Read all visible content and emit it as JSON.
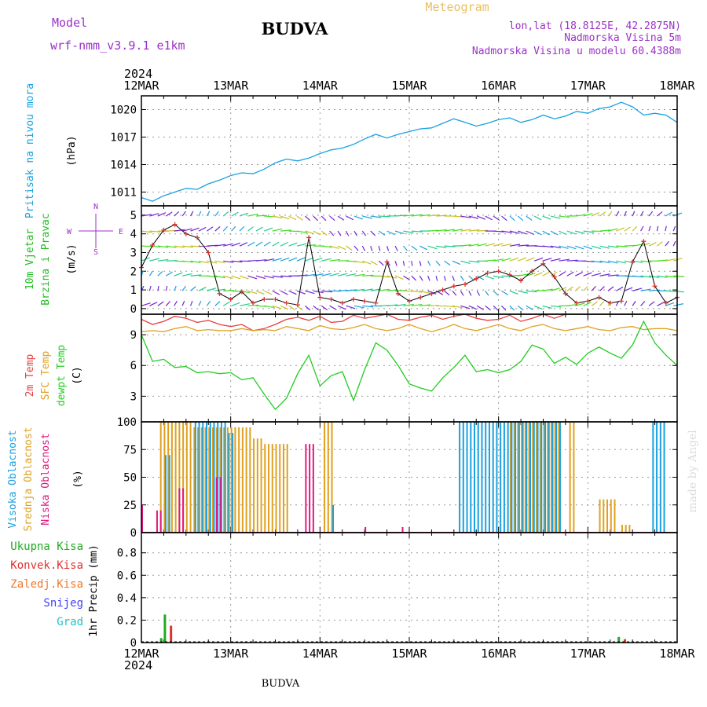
{
  "header": {
    "model_label": "Model",
    "model_name": "wrf-nmm_v3.9.1 e1km",
    "title": "BUDVA",
    "meteogram": "Meteogram",
    "lonlat": "lon,lat (18.8125E, 42.2875N)",
    "elev": "Nadmorska Visina 5m",
    "model_elev": "Nadmorska Visina u modelu 60.4388m",
    "watermark": "made by Angel",
    "footer_station": "BUDVA"
  },
  "colors": {
    "pressure": "#1aa0e0",
    "wind_label": "#22bb22",
    "wind_speed": "#e03030",
    "t2m": "#e84040",
    "tsfc": "#e0a020",
    "dewpt": "#22cc22",
    "cloud_high": "#1aa0e0",
    "cloud_mid": "#e0a020",
    "cloud_low": "#e01880",
    "precip_total": "#22aa22",
    "precip_conv": "#e03030",
    "precip_frz": "#f07828",
    "snow": "#4040ff",
    "hail": "#22c4c4",
    "purple": "#9b30c8",
    "gold": "#e8c060"
  },
  "chart_data": [
    {
      "type": "line",
      "name": "pressure",
      "ylabel_lines": [
        "Pritisak na nivou mora",
        "(hPa)"
      ],
      "yticks": [
        1011,
        1014,
        1017,
        1020
      ],
      "ylim": [
        1009.5,
        1021.5
      ],
      "x_hours": [
        0,
        3,
        6,
        9,
        12,
        15,
        18,
        21,
        24,
        27,
        30,
        33,
        36,
        39,
        42,
        45,
        48,
        51,
        54,
        57,
        60,
        63,
        66,
        69,
        72,
        75,
        78,
        81,
        84,
        87,
        90,
        93,
        96,
        99,
        102,
        105,
        108,
        111,
        114,
        117,
        120,
        123,
        126,
        129,
        132,
        135,
        138,
        141,
        144
      ],
      "values": [
        1010.4,
        1010.0,
        1010.6,
        1011.0,
        1011.4,
        1011.3,
        1011.9,
        1012.3,
        1012.8,
        1013.1,
        1013.0,
        1013.5,
        1014.2,
        1014.6,
        1014.4,
        1014.7,
        1015.2,
        1015.6,
        1015.8,
        1016.2,
        1016.8,
        1017.3,
        1016.9,
        1017.3,
        1017.6,
        1017.9,
        1018.0,
        1018.5,
        1019.0,
        1018.6,
        1018.2,
        1018.5,
        1018.9,
        1019.1,
        1018.6,
        1018.9,
        1019.4,
        1019.0,
        1019.3,
        1019.8,
        1019.6,
        1020.1,
        1020.3,
        1020.8,
        1020.3,
        1019.4,
        1019.6,
        1019.4,
        1018.6
      ]
    },
    {
      "type": "line",
      "name": "wind",
      "ylabel_lines": [
        "10m Vjetar",
        "Brzina i Pravac",
        "(m/s)"
      ],
      "yticks": [
        0,
        1,
        2,
        3,
        4,
        5
      ],
      "ylim": [
        -0.3,
        5.5
      ],
      "compass": "N",
      "compass_w": "W",
      "compass_e": "E",
      "compass_s": "S",
      "x_hours": [
        0,
        3,
        6,
        9,
        12,
        15,
        18,
        21,
        24,
        27,
        30,
        33,
        36,
        39,
        42,
        45,
        48,
        51,
        54,
        57,
        60,
        63,
        66,
        69,
        72,
        75,
        78,
        81,
        84,
        87,
        90,
        93,
        96,
        99,
        102,
        105,
        108,
        111,
        114,
        117,
        120,
        123,
        126,
        129,
        132,
        135,
        138,
        141,
        144
      ],
      "values": [
        2.2,
        3.4,
        4.2,
        4.5,
        4.0,
        3.8,
        3.0,
        0.8,
        0.5,
        0.9,
        0.3,
        0.5,
        0.5,
        0.3,
        0.2,
        3.8,
        0.6,
        0.5,
        0.3,
        0.5,
        0.4,
        0.3,
        2.5,
        0.8,
        0.4,
        0.6,
        0.8,
        1.0,
        1.2,
        1.3,
        1.6,
        1.9,
        2.0,
        1.8,
        1.5,
        2.0,
        2.4,
        1.7,
        0.8,
        0.3,
        0.4,
        0.6,
        0.3,
        0.4,
        2.5,
        3.6,
        1.2,
        0.3,
        0.6
      ]
    },
    {
      "type": "line",
      "name": "temperature",
      "ylabel_lines": [
        "2m Temp",
        "SFC Temp",
        "dewpt Temp",
        "(C)"
      ],
      "yticks": [
        3,
        6,
        9
      ],
      "ylim": [
        0.5,
        11.0
      ],
      "x_hours": [
        0,
        3,
        6,
        9,
        12,
        15,
        18,
        21,
        24,
        27,
        30,
        33,
        36,
        39,
        42,
        45,
        48,
        51,
        54,
        57,
        60,
        63,
        66,
        69,
        72,
        75,
        78,
        81,
        84,
        87,
        90,
        93,
        96,
        99,
        102,
        105,
        108,
        111,
        114,
        117,
        120,
        123,
        126,
        129,
        132,
        135,
        138,
        141,
        144
      ],
      "series": [
        {
          "name": "2m Temp",
          "values": [
            10.5,
            10.0,
            10.3,
            10.8,
            10.6,
            10.2,
            10.4,
            10.0,
            9.8,
            10.0,
            9.4,
            9.6,
            10.0,
            10.5,
            10.7,
            10.4,
            10.8,
            10.2,
            10.3,
            10.9,
            10.6,
            10.8,
            11.0,
            10.5,
            10.4,
            10.7,
            10.9,
            10.5,
            10.8,
            11.0,
            10.6,
            10.4,
            10.5,
            10.9,
            10.3,
            10.6,
            11.0,
            10.6,
            11.0,
            11.0,
            11.0,
            11.0,
            11.0,
            11.0,
            11.0,
            11.0,
            11.0,
            11.0,
            11.0
          ]
        },
        {
          "name": "SFC Temp",
          "values": [
            9.3,
            9.4,
            9.3,
            9.6,
            9.8,
            9.4,
            9.5,
            9.4,
            9.4,
            9.6,
            9.4,
            9.5,
            9.4,
            9.8,
            9.6,
            9.4,
            9.9,
            9.6,
            9.5,
            9.7,
            10.0,
            9.6,
            9.4,
            9.6,
            10.0,
            9.6,
            9.3,
            9.6,
            10.0,
            9.6,
            9.4,
            9.7,
            10.0,
            9.6,
            9.4,
            9.8,
            10.0,
            9.6,
            9.4,
            9.6,
            9.8,
            9.5,
            9.4,
            9.7,
            9.8,
            9.5,
            9.6,
            9.6,
            9.4
          ]
        },
        {
          "name": "dewpt Temp",
          "values": [
            9.0,
            6.4,
            6.6,
            5.8,
            5.9,
            5.3,
            5.4,
            5.2,
            5.3,
            4.6,
            4.8,
            3.2,
            1.7,
            2.8,
            5.2,
            7.0,
            4.0,
            5.0,
            5.4,
            2.6,
            5.6,
            8.2,
            7.5,
            6.0,
            4.2,
            3.8,
            3.5,
            4.8,
            5.8,
            7.0,
            5.4,
            5.6,
            5.3,
            5.6,
            6.4,
            8.0,
            7.6,
            6.2,
            6.8,
            6.1,
            7.2,
            7.8,
            7.2,
            6.7,
            8.0,
            10.3,
            8.2,
            7.0,
            6.0
          ]
        }
      ]
    },
    {
      "type": "bar",
      "name": "clouds",
      "ylabel_lines": [
        "Visoka Oblacnost",
        "Srednja Oblacnost",
        "Niska Oblacnost",
        "(%)"
      ],
      "yticks": [
        0,
        25,
        50,
        75,
        100
      ],
      "ylim": [
        0,
        100
      ],
      "series": [
        {
          "name": "Visoka Oblacnost",
          "segments": [
            [
              6,
              8,
              70
            ],
            [
              14,
              18,
              100
            ],
            [
              18,
              23,
              100
            ],
            [
              23,
              25,
              90
            ],
            [
              51,
              52,
              25
            ],
            [
              85,
              95,
              100
            ],
            [
              95,
              113,
              100
            ],
            [
              137,
              141,
              100
            ]
          ]
        },
        {
          "name": "Srednja Oblacnost",
          "segments": [
            [
              5,
              14,
              100
            ],
            [
              14,
              30,
              95
            ],
            [
              30,
              33,
              85
            ],
            [
              33,
              40,
              80
            ],
            [
              49,
              52,
              100
            ],
            [
              99,
              113,
              100
            ],
            [
              115,
              117,
              100
            ],
            [
              123,
              128,
              30
            ],
            [
              129,
              132,
              7
            ]
          ]
        },
        {
          "name": "Niska Oblacnost",
          "segments": [
            [
              0,
              1,
              25
            ],
            [
              4,
              6,
              20
            ],
            [
              10,
              12,
              40
            ],
            [
              20,
              22,
              50
            ],
            [
              44,
              47,
              80
            ],
            [
              60,
              61,
              5
            ],
            [
              70,
              71,
              5
            ]
          ]
        }
      ]
    },
    {
      "type": "bar",
      "name": "precip",
      "ylabel_lines": [
        "1hr Precip (mm)"
      ],
      "side_labels": [
        "Ukupna Kisa",
        "Konvek.Kisa",
        "Zaledj.Kisa",
        "Snijeg",
        "Grad"
      ],
      "yticks": [
        0,
        0.2,
        0.4,
        0.6,
        0.8
      ],
      "ylim": [
        0,
        0.98
      ],
      "series": [
        {
          "name": "Ukupna Kisa",
          "bars": [
            [
              5,
              0.04
            ],
            [
              6,
              0.25
            ],
            [
              128,
              0.05
            ]
          ]
        },
        {
          "name": "Konvek.Kisa",
          "bars": [
            [
              7,
              0.15
            ],
            [
              129,
              0.03
            ]
          ]
        }
      ]
    }
  ],
  "xaxis": {
    "top_year": "2024",
    "bottom_year": "2024",
    "dates": [
      "12MAR",
      "13MAR",
      "14MAR",
      "15MAR",
      "16MAR",
      "17MAR",
      "18MAR"
    ]
  }
}
